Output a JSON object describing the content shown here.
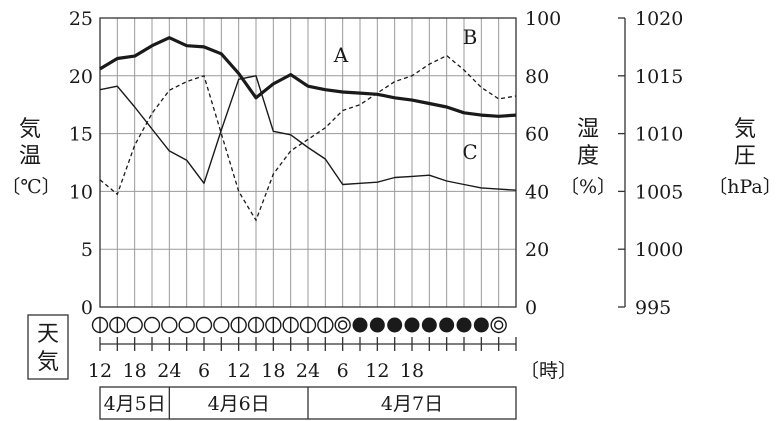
{
  "chart_data": {
    "type": "line",
    "x_ticks": [
      "12",
      "18",
      "24",
      "6",
      "12",
      "18",
      "24",
      "6",
      "12",
      "18"
    ],
    "x_unit": "〔時〕",
    "x_range": [
      12,
      84
    ],
    "x_grid_step": 3,
    "dates": [
      {
        "label": "4月5日",
        "from": 12,
        "to": 24
      },
      {
        "label": "4月6日",
        "from": 24,
        "to": 48
      },
      {
        "label": "4月7日",
        "from": 48,
        "to": 84
      }
    ],
    "axes": {
      "left": {
        "label_chars": [
          "気",
          "温"
        ],
        "unit": "〔℃〕",
        "range": [
          0,
          25
        ],
        "ticks": [
          "0",
          "5",
          "10",
          "15",
          "20",
          "25"
        ]
      },
      "middle": {
        "label_chars": [
          "湿",
          "度"
        ],
        "unit": "〔%〕",
        "range": [
          0,
          100
        ],
        "ticks": [
          "0",
          "20",
          "40",
          "60",
          "80",
          "100"
        ]
      },
      "right": {
        "label_chars": [
          "気",
          "圧"
        ],
        "unit": "〔hPa〕",
        "range": [
          995,
          1020
        ],
        "ticks": [
          "995",
          "1000",
          "1005",
          "1010",
          "1015",
          "1020"
        ]
      }
    },
    "grid": true,
    "series": [
      {
        "name": "A",
        "axis": "right",
        "style": "bold",
        "x": [
          12,
          15,
          18,
          21,
          24,
          27,
          30,
          33,
          36,
          39,
          42,
          45,
          48,
          51,
          54,
          57,
          60,
          63,
          66,
          69,
          72,
          75,
          78,
          81,
          84
        ],
        "y": [
          1015.6,
          1016.5,
          1016.7,
          1017.6,
          1018.3,
          1017.6,
          1017.5,
          1016.9,
          1015.2,
          1013.1,
          1014.3,
          1015.1,
          1014.1,
          1013.8,
          1013.6,
          1013.5,
          1013.4,
          1013.1,
          1012.9,
          1012.6,
          1012.3,
          1011.8,
          1011.6,
          1011.5,
          1011.6
        ]
      },
      {
        "name": "B",
        "axis": "middle",
        "style": "dashed",
        "x": [
          12,
          15,
          18,
          21,
          24,
          27,
          30,
          33,
          36,
          39,
          42,
          45,
          48,
          51,
          54,
          57,
          60,
          63,
          66,
          69,
          72,
          75,
          78,
          81,
          84
        ],
        "y": [
          44,
          39,
          56,
          67,
          75,
          78,
          80,
          60,
          40,
          30,
          46,
          54,
          58,
          62,
          68,
          70,
          74,
          78,
          80,
          84,
          87,
          82,
          76,
          72,
          73
        ]
      },
      {
        "name": "C",
        "axis": "left",
        "style": "thin",
        "x": [
          12,
          15,
          18,
          21,
          24,
          27,
          30,
          33,
          36,
          39,
          42,
          45,
          48,
          51,
          54,
          57,
          60,
          63,
          66,
          69,
          72,
          75,
          78,
          81,
          84
        ],
        "y": [
          18.8,
          19.1,
          17.3,
          15.4,
          13.5,
          12.7,
          10.7,
          15.3,
          19.7,
          20.0,
          15.2,
          14.9,
          13.8,
          12.8,
          10.6,
          10.7,
          10.8,
          11.2,
          11.3,
          11.4,
          10.9,
          10.6,
          10.3,
          10.2,
          10.1
        ]
      }
    ],
    "weather": {
      "label_chars": [
        "天",
        "気"
      ],
      "symbols": [
        "partly-cloudy",
        "partly-cloudy",
        "clear",
        "clear",
        "clear",
        "clear",
        "clear",
        "clear",
        "partly-cloudy",
        "partly-cloudy",
        "partly-cloudy",
        "partly-cloudy",
        "partly-cloudy",
        "partly-cloudy",
        "cloudy",
        "rain",
        "rain",
        "rain",
        "rain",
        "rain",
        "rain",
        "rain",
        "rain",
        "cloudy"
      ]
    }
  }
}
